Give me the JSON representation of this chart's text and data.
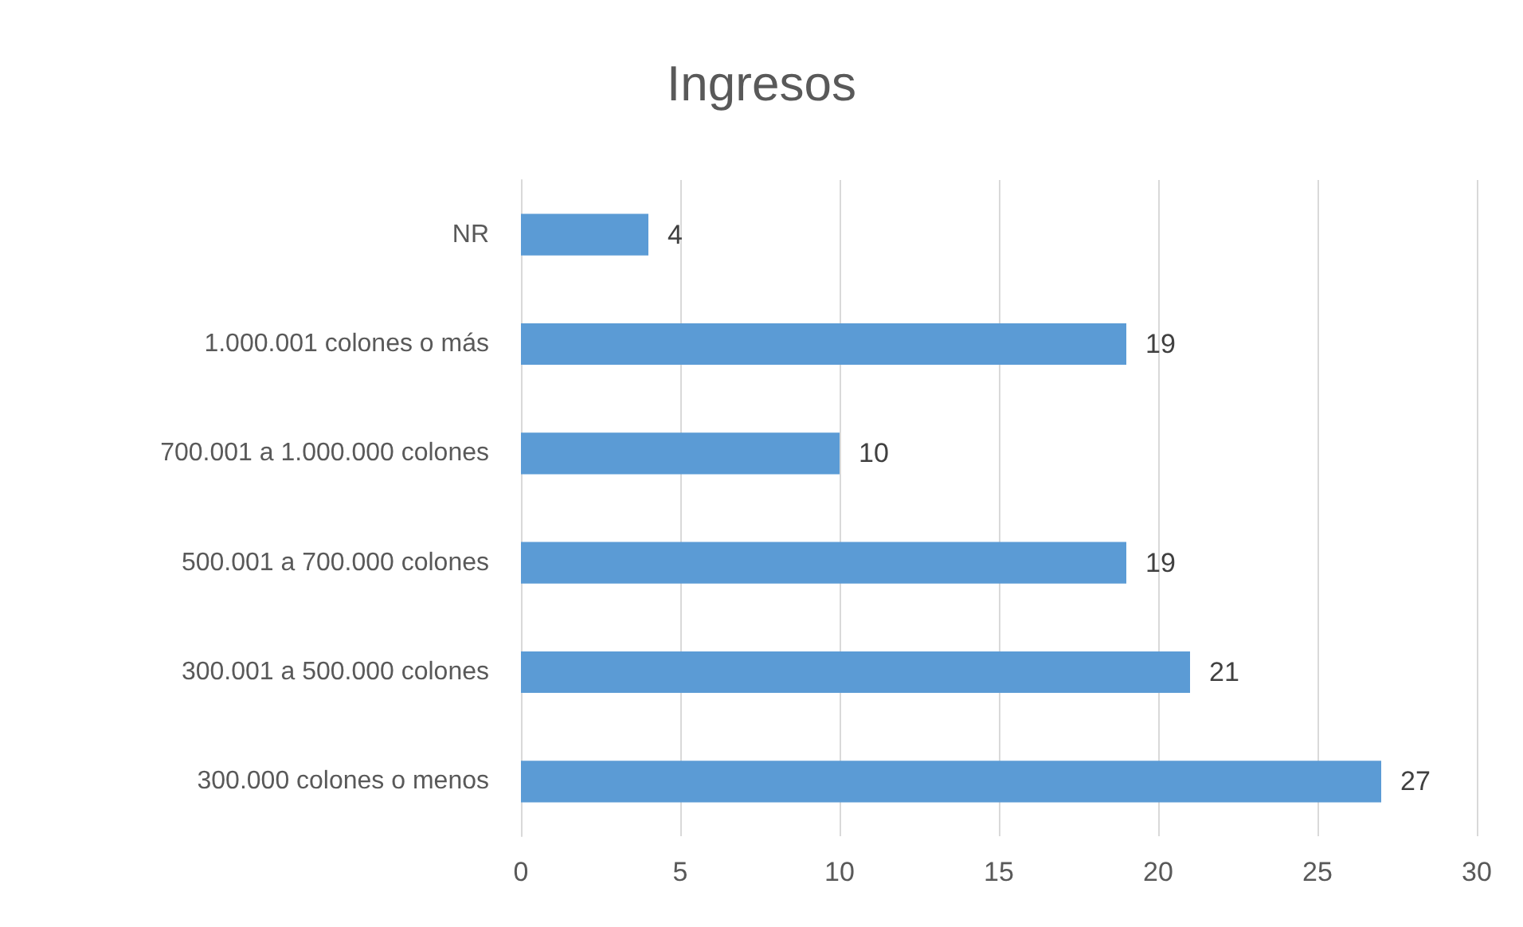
{
  "chart_data": {
    "type": "bar",
    "orientation": "horizontal",
    "title": "Ingresos",
    "categories": [
      "NR",
      "1.000.001 colones o más",
      "700.001 a 1.000.000 colones",
      "500.001 a 700.000 colones",
      "300.001 a 500.000 colones",
      "300.000 colones o menos"
    ],
    "values": [
      4,
      19,
      10,
      19,
      21,
      27
    ],
    "color": "#5b9bd5",
    "xlim": [
      0,
      30
    ],
    "xticks": [
      0,
      5,
      10,
      15,
      20,
      25,
      30
    ],
    "grid": "x",
    "data_labels": true
  }
}
